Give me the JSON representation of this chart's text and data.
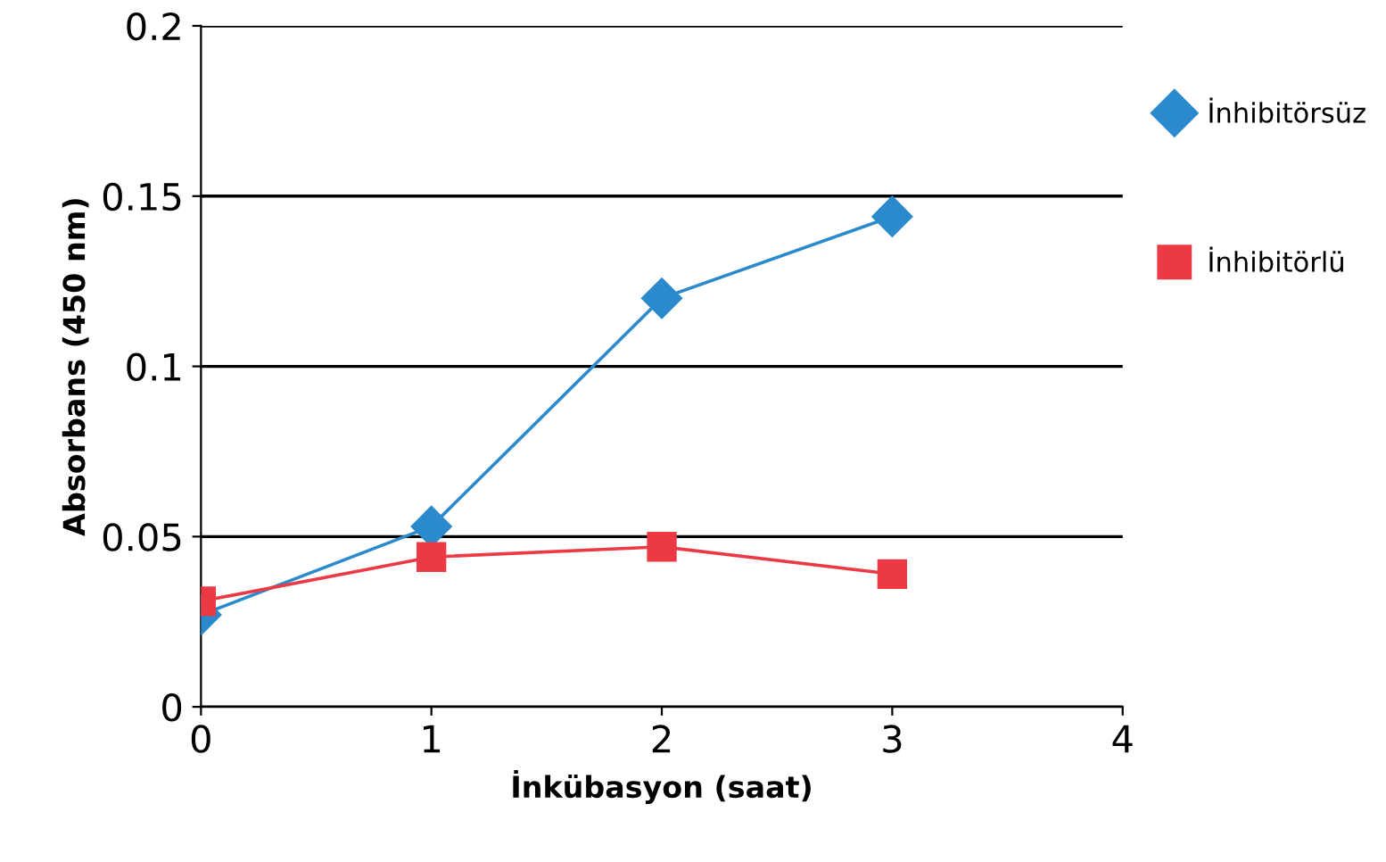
{
  "chart_data": {
    "type": "line",
    "xlabel": "İnkübasyon (saat)",
    "ylabel": "Absorbans (450 nm)",
    "x": [
      0,
      1,
      2,
      3
    ],
    "series": [
      {
        "name": "İnhibitörsüz",
        "color": "#2b8acb",
        "marker": "diamond",
        "values": [
          0.027,
          0.053,
          0.12,
          0.144
        ]
      },
      {
        "name": "İnhibitörlü",
        "color": "#ec3a45",
        "marker": "square",
        "values": [
          0.031,
          0.044,
          0.047,
          0.039
        ]
      }
    ],
    "xlim": [
      0,
      4
    ],
    "xticks": [
      0,
      1,
      2,
      3,
      4
    ],
    "ylim": [
      0,
      0.2
    ],
    "yticks": [
      0,
      0.05,
      0.1,
      0.15,
      0.2
    ],
    "grid": "y",
    "legend": "right"
  }
}
